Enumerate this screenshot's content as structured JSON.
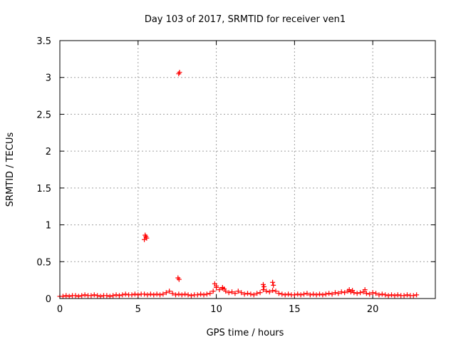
{
  "chart_data": {
    "type": "scatter",
    "title": "Day 103 of 2017, SRMTID for receiver ven1",
    "xlabel": "GPS time / hours",
    "ylabel": "SRMTID / TECUs",
    "xlim": [
      0,
      24
    ],
    "ylim": [
      0,
      3.5
    ],
    "xticks": [
      0,
      5,
      10,
      15,
      20
    ],
    "xtick_labels": [
      "0",
      "5",
      "10",
      "15",
      "20"
    ],
    "yticks": [
      0,
      0.5,
      1,
      1.5,
      2,
      2.5,
      3,
      3.5
    ],
    "ytick_labels": [
      "0",
      "0.5",
      "1",
      "1.5",
      "2",
      "2.5",
      "3",
      "3.5"
    ],
    "grid": true,
    "marker": "plus",
    "color": "#ff0000",
    "series": [
      {
        "x": [
          0.0,
          0.2,
          0.4,
          0.6,
          0.8,
          1.0,
          1.2,
          1.4,
          1.6,
          1.8,
          2.0,
          2.2,
          2.4,
          2.6,
          2.8,
          3.0,
          3.2,
          3.4,
          3.6,
          3.8,
          4.0,
          4.2,
          4.4,
          4.6,
          4.8,
          5.0,
          5.2,
          5.4,
          5.6,
          5.8,
          6.0,
          6.2,
          6.4,
          6.6,
          6.8,
          7.0,
          7.2,
          7.4,
          7.6,
          7.8,
          8.0,
          8.2,
          8.4,
          8.6,
          8.8,
          9.0,
          9.2,
          9.4,
          9.6,
          9.8,
          10.0,
          10.2,
          10.4,
          10.6,
          10.8,
          11.0,
          11.2,
          11.4,
          11.6,
          11.8,
          12.0,
          12.2,
          12.4,
          12.6,
          12.8,
          13.0,
          13.2,
          13.4,
          13.6,
          13.8,
          14.0,
          14.2,
          14.4,
          14.6,
          14.8,
          15.0,
          15.2,
          15.4,
          15.6,
          15.8,
          16.0,
          16.2,
          16.4,
          16.6,
          16.8,
          17.0,
          17.2,
          17.4,
          17.6,
          17.8,
          18.0,
          18.2,
          18.4,
          18.6,
          18.8,
          19.0,
          19.2,
          19.4,
          19.6,
          19.8,
          20.0,
          20.2,
          20.4,
          20.6,
          20.8,
          21.0,
          21.2,
          21.4,
          21.6,
          21.8,
          22.0,
          22.2,
          22.4,
          22.6,
          22.8,
          5.4,
          5.45,
          5.5,
          5.55,
          7.55,
          7.6,
          7.62,
          7.65,
          9.9,
          10.0,
          10.4,
          10.5,
          13.0,
          13.05,
          13.6,
          13.65,
          18.5,
          18.7,
          19.5
        ],
        "y": [
          0.03,
          0.03,
          0.04,
          0.03,
          0.04,
          0.04,
          0.03,
          0.04,
          0.05,
          0.04,
          0.04,
          0.05,
          0.04,
          0.03,
          0.04,
          0.04,
          0.03,
          0.04,
          0.05,
          0.04,
          0.05,
          0.06,
          0.05,
          0.05,
          0.06,
          0.05,
          0.06,
          0.06,
          0.05,
          0.06,
          0.05,
          0.06,
          0.05,
          0.06,
          0.08,
          0.1,
          0.07,
          0.05,
          0.06,
          0.05,
          0.06,
          0.05,
          0.04,
          0.05,
          0.05,
          0.06,
          0.05,
          0.06,
          0.07,
          0.1,
          0.15,
          0.12,
          0.14,
          0.1,
          0.08,
          0.09,
          0.07,
          0.1,
          0.08,
          0.06,
          0.07,
          0.06,
          0.05,
          0.07,
          0.08,
          0.12,
          0.1,
          0.09,
          0.11,
          0.1,
          0.07,
          0.06,
          0.05,
          0.06,
          0.05,
          0.05,
          0.06,
          0.05,
          0.06,
          0.07,
          0.05,
          0.06,
          0.05,
          0.06,
          0.05,
          0.06,
          0.07,
          0.06,
          0.08,
          0.07,
          0.09,
          0.08,
          0.1,
          0.09,
          0.08,
          0.07,
          0.08,
          0.09,
          0.07,
          0.06,
          0.08,
          0.07,
          0.05,
          0.06,
          0.05,
          0.04,
          0.05,
          0.04,
          0.05,
          0.04,
          0.04,
          0.05,
          0.04,
          0.04,
          0.05,
          0.8,
          0.86,
          0.84,
          0.82,
          0.28,
          3.05,
          0.26,
          3.07,
          0.2,
          0.17,
          0.15,
          0.13,
          0.19,
          0.16,
          0.22,
          0.18,
          0.12,
          0.11,
          0.12
        ]
      }
    ]
  }
}
